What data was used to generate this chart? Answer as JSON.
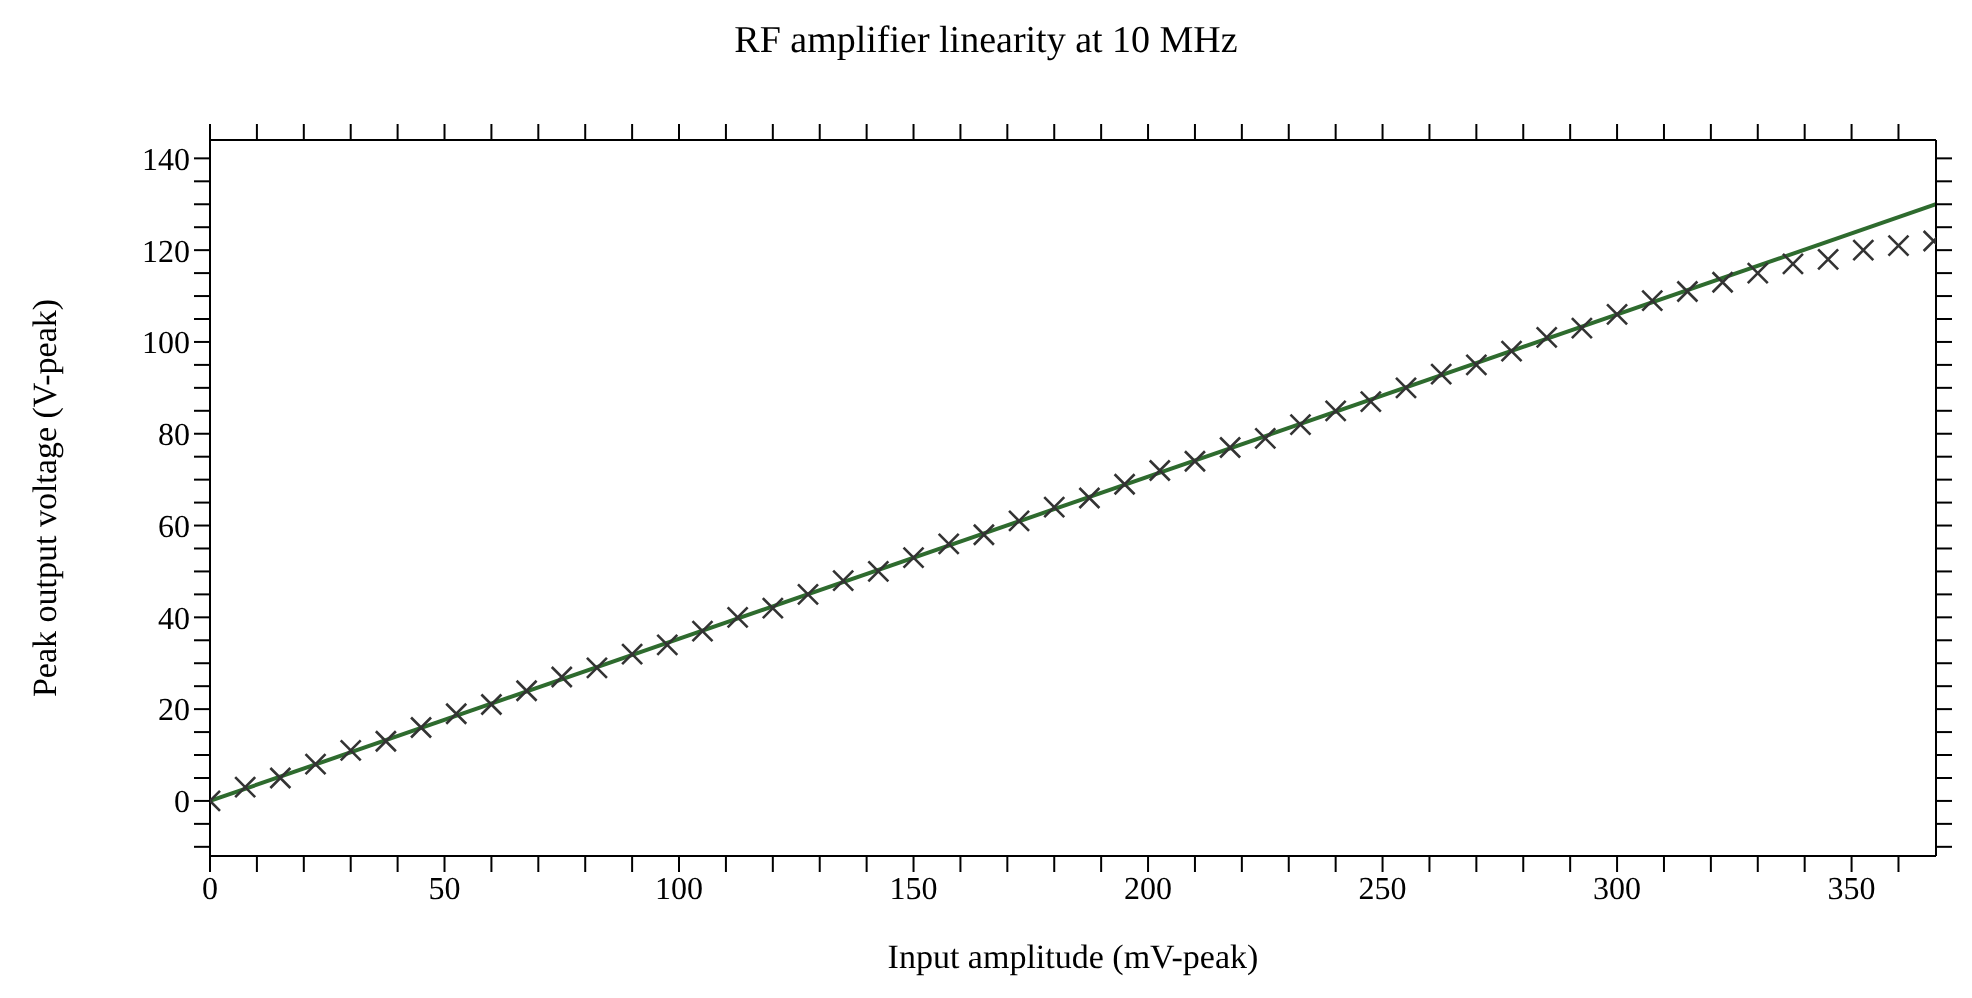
{
  "chart_data": {
    "type": "scatter",
    "title": "RF amplifier linearity at 10 MHz",
    "xlabel": "Input amplitude (mV-peak)",
    "ylabel": "Peak output voltage (V-peak)",
    "xlim": [
      0,
      368
    ],
    "ylim": [
      -12,
      144
    ],
    "xticks": [
      0,
      {
        "value": 10,
        "label": null
      },
      {
        "value": 20,
        "label": null
      },
      {
        "value": 30,
        "label": null
      },
      {
        "value": 40,
        "label": null
      },
      50,
      {
        "value": 60,
        "label": null
      },
      {
        "value": 70,
        "label": null
      },
      {
        "value": 80,
        "label": null
      },
      {
        "value": 90,
        "label": null
      },
      100,
      {
        "value": 110,
        "label": null
      },
      {
        "value": 120,
        "label": null
      },
      {
        "value": 130,
        "label": null
      },
      {
        "value": 140,
        "label": null
      },
      150,
      {
        "value": 160,
        "label": null
      },
      {
        "value": 170,
        "label": null
      },
      {
        "value": 180,
        "label": null
      },
      {
        "value": 190,
        "label": null
      },
      200,
      {
        "value": 210,
        "label": null
      },
      {
        "value": 220,
        "label": null
      },
      {
        "value": 230,
        "label": null
      },
      {
        "value": 240,
        "label": null
      },
      250,
      {
        "value": 260,
        "label": null
      },
      {
        "value": 270,
        "label": null
      },
      {
        "value": 280,
        "label": null
      },
      {
        "value": 290,
        "label": null
      },
      300,
      {
        "value": 310,
        "label": null
      },
      {
        "value": 320,
        "label": null
      },
      {
        "value": 330,
        "label": null
      },
      {
        "value": 340,
        "label": null
      },
      350,
      {
        "value": 360,
        "label": null
      }
    ],
    "yticks": [
      {
        "value": -10,
        "label": null
      },
      {
        "value": -5,
        "label": null
      },
      0,
      {
        "value": 5,
        "label": null
      },
      {
        "value": 10,
        "label": null
      },
      {
        "value": 15,
        "label": null
      },
      20,
      {
        "value": 25,
        "label": null
      },
      {
        "value": 30,
        "label": null
      },
      {
        "value": 35,
        "label": null
      },
      40,
      {
        "value": 45,
        "label": null
      },
      {
        "value": 50,
        "label": null
      },
      {
        "value": 55,
        "label": null
      },
      60,
      {
        "value": 65,
        "label": null
      },
      {
        "value": 70,
        "label": null
      },
      {
        "value": 75,
        "label": null
      },
      80,
      {
        "value": 85,
        "label": null
      },
      {
        "value": 90,
        "label": null
      },
      {
        "value": 95,
        "label": null
      },
      100,
      {
        "value": 105,
        "label": null
      },
      {
        "value": 110,
        "label": null
      },
      {
        "value": 115,
        "label": null
      },
      120,
      {
        "value": 125,
        "label": null
      },
      {
        "value": 130,
        "label": null
      },
      {
        "value": 135,
        "label": null
      },
      140
    ],
    "legend": false,
    "marker": "cross",
    "x": [
      0,
      7.5,
      15,
      22.5,
      30,
      37.5,
      45,
      52.5,
      60,
      67.5,
      75,
      82.5,
      90,
      97.5,
      105,
      112.5,
      120,
      127.5,
      135,
      142.5,
      150,
      157.5,
      165,
      172.5,
      180,
      187.5,
      195,
      202.5,
      210,
      217.5,
      225,
      232.5,
      240,
      247.5,
      255,
      262.5,
      270,
      277.5,
      285,
      292.5,
      300,
      307.5,
      315,
      322.5,
      330,
      337.5,
      345,
      352.5,
      360,
      367.5
    ],
    "series": [
      {
        "color": "#333333",
        "values": [
          0,
          3,
          5,
          8,
          11,
          13,
          16,
          19,
          21,
          24,
          27,
          29,
          32,
          34,
          37,
          40,
          42,
          45,
          48,
          50,
          53,
          56,
          58,
          61,
          64,
          66,
          69,
          72,
          74,
          77,
          79,
          82,
          85,
          87,
          90,
          93,
          95,
          98,
          101,
          103,
          106,
          109,
          111,
          113,
          115,
          117,
          118,
          120,
          121,
          122
        ]
      },
      {
        "type": "line",
        "color": "#2e6b2e",
        "x": [
          0,
          368
        ],
        "values": [
          0,
          130
        ],
        "line_style": "solid",
        "marker": "none"
      }
    ]
  }
}
